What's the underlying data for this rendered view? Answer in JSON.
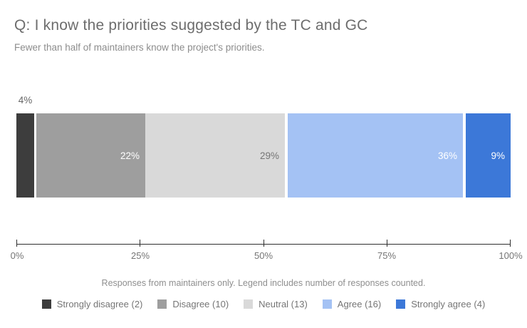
{
  "chart_data": {
    "type": "bar",
    "stacked": true,
    "orientation": "horizontal",
    "title": "Q: I know the priorities suggested by the TC and GC",
    "subtitle": "Fewer than half of maintainers know the project's priorities.",
    "footnote": "Responses from maintainers only. Legend includes number of responses counted.",
    "legend_position": "bottom",
    "grid": false,
    "series": [
      {
        "name": "Strongly disagree",
        "responses": 2,
        "percent": 4,
        "display_percent": "4%",
        "legend_label": "Strongly disagree (2)",
        "color": "#3d3d3d",
        "label_color": "#666666",
        "label_placement": "above-bar"
      },
      {
        "name": "Disagree",
        "responses": 10,
        "percent": 22,
        "display_percent": "22%",
        "legend_label": "Disagree (10)",
        "color": "#9e9e9e",
        "label_color": "#ffffff",
        "label_placement": "inside-right"
      },
      {
        "name": "Neutral",
        "responses": 13,
        "percent": 29,
        "display_percent": "29%",
        "legend_label": "Neutral (13)",
        "color": "#d9d9d9",
        "label_color": "#757575",
        "label_placement": "inside-right"
      },
      {
        "name": "Agree",
        "responses": 16,
        "percent": 36,
        "display_percent": "36%",
        "legend_label": "Agree (16)",
        "color": "#a4c2f4",
        "label_color": "#ffffff",
        "label_placement": "inside-right"
      },
      {
        "name": "Strongly agree",
        "responses": 4,
        "percent": 9,
        "display_percent": "9%",
        "legend_label": "Strongly agree (4)",
        "color": "#3c78d8",
        "label_color": "#ffffff",
        "label_placement": "inside-right"
      }
    ],
    "x_axis": {
      "range_percent": [
        0,
        100
      ],
      "tick_labels": [
        "0%",
        "25%",
        "50%",
        "75%",
        "100%"
      ],
      "axis_color": "#2f2f2f",
      "tick_label_color": "#757575"
    }
  }
}
